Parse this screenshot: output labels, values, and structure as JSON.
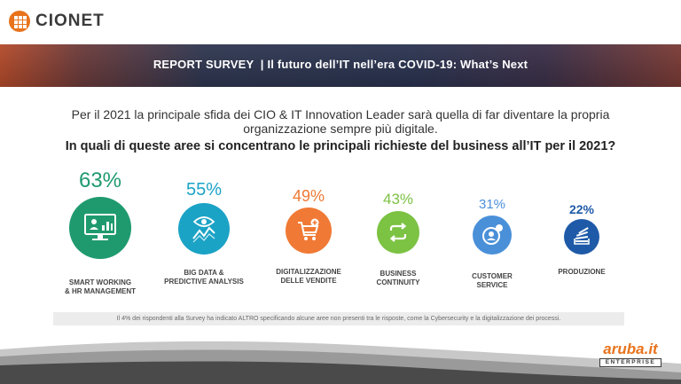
{
  "header": {
    "logo_text": "CIONET"
  },
  "banner": {
    "title": "REPORT SURVEY  | Il futuro dell’IT nell’era COVID-19: What’s Next"
  },
  "intro": {
    "text": "Per il 2021 la principale sfida dei CIO & IT Innovation Leader sarà quella di far diventare la propria organizzazione sempre più digitale.",
    "question": "In quali di queste aree si concentrano le principali richieste del business all’IT per il 2021?"
  },
  "chart_data": {
    "type": "bar",
    "categories": [
      "SMART WORKING & HR MANAGEMENT",
      "BIG DATA & PREDICTIVE ANALYSIS",
      "DIGITALIZZAZIONE DELLE VENDITE",
      "BUSINESS CONTINUITY",
      "CUSTOMER SERVICE",
      "PRODUZIONE"
    ],
    "values": [
      63,
      55,
      49,
      43,
      31,
      22
    ],
    "unit": "%"
  },
  "items": [
    {
      "pct": "63%",
      "label_1": "SMART WORKING",
      "label_2": "& HR MANAGEMENT",
      "color": "#1f9a6f",
      "icon": "monitor-icon"
    },
    {
      "pct": "55%",
      "label_1": "BIG DATA &",
      "label_2": "PREDICTIVE ANALYSIS",
      "color": "#1ba3c6",
      "icon": "eye-chart-icon"
    },
    {
      "pct": "49%",
      "label_1": "DIGITALIZZAZIONE",
      "label_2": "DELLE VENDITE",
      "color": "#f07a35",
      "icon": "cart-icon"
    },
    {
      "pct": "43%",
      "label_1": "BUSINESS",
      "label_2": "CONTINUITY",
      "color": "#7cc243",
      "icon": "repeat-icon"
    },
    {
      "pct": "31%",
      "label_1": "CUSTOMER",
      "label_2": "SERVICE",
      "color": "#4a90d9",
      "icon": "user-support-icon"
    },
    {
      "pct": "22%",
      "label_1": "PRODUZIONE",
      "label_2": "",
      "color": "#1e5aa8",
      "icon": "stack-icon"
    }
  ],
  "footnote": {
    "text": "Il 4% dei rispondenti alla Survey ha indicato ALTRO specificando alcune aree non presenti tra le risposte, come la Cybersecurity e la digitalizzazione dei processi."
  },
  "footer": {
    "brand": "aruba.it",
    "brand_sub": "ENTERPRISE"
  }
}
